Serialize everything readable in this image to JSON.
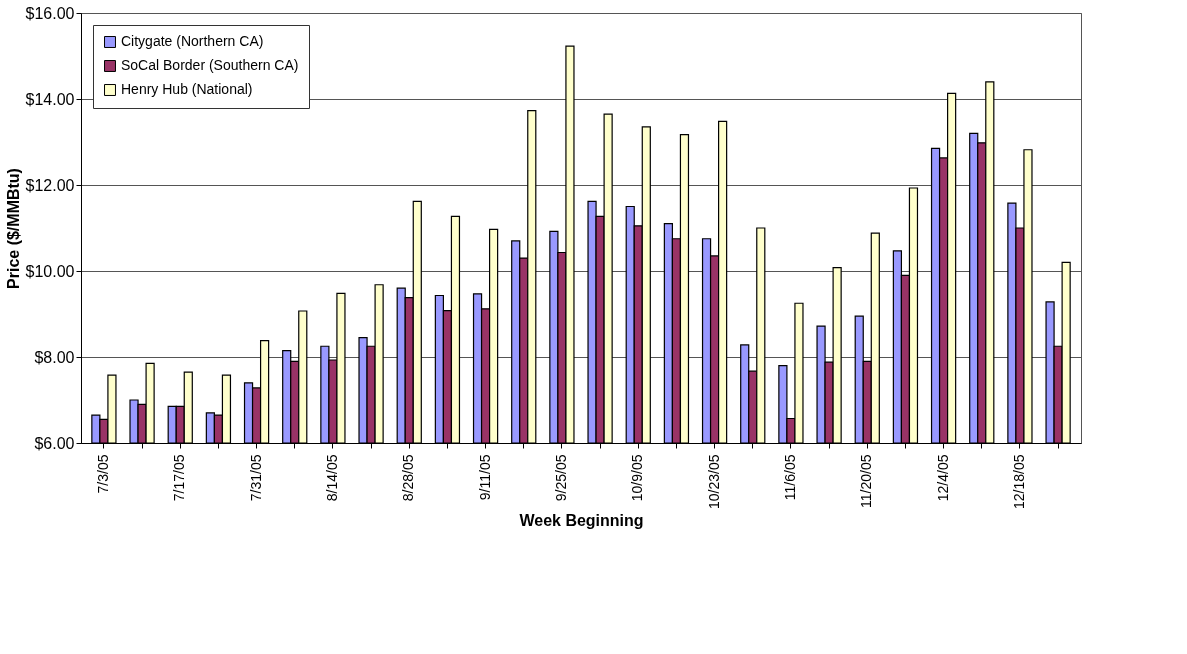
{
  "chart_data": {
    "type": "bar",
    "xlabel": "Week Beginning",
    "ylabel": "Price ($/MMBtu)",
    "categories": [
      "7/3/05",
      null,
      "7/17/05",
      null,
      "7/31/05",
      null,
      "8/14/05",
      null,
      "8/28/05",
      null,
      "9/11/05",
      null,
      "9/25/05",
      null,
      "10/9/05",
      null,
      "10/23/05",
      null,
      "11/6/05",
      null,
      "11/20/05",
      null,
      "12/4/05",
      null,
      "12/18/05",
      null
    ],
    "series": [
      {
        "name": "Citygate (Northern CA)",
        "color": "#9999ff",
        "values": [
          6.65,
          7.0,
          6.85,
          6.7,
          7.4,
          8.15,
          8.25,
          8.45,
          9.6,
          9.43,
          9.47,
          10.7,
          10.92,
          11.62,
          11.5,
          11.1,
          10.75,
          8.28,
          7.8,
          8.72,
          8.95,
          10.47,
          12.85,
          13.2,
          11.58,
          9.28
        ]
      },
      {
        "name": "SoCal Border (Southern CA)",
        "color": "#993366",
        "values": [
          6.55,
          6.9,
          6.85,
          6.65,
          7.28,
          7.9,
          7.93,
          8.25,
          9.38,
          9.08,
          9.12,
          10.3,
          10.43,
          11.27,
          11.05,
          10.75,
          10.35,
          7.67,
          6.57,
          7.88,
          7.9,
          9.9,
          12.63,
          12.98,
          11.0,
          8.25
        ]
      },
      {
        "name": "Henry Hub (National)",
        "color": "#ffffcc",
        "values": [
          7.58,
          7.85,
          7.65,
          7.58,
          8.38,
          9.07,
          9.48,
          9.68,
          11.62,
          11.27,
          10.97,
          13.73,
          15.23,
          13.65,
          13.35,
          13.17,
          13.48,
          11.0,
          9.25,
          10.08,
          10.88,
          11.93,
          14.13,
          14.4,
          12.82,
          10.2
        ]
      }
    ],
    "ylim": [
      6,
      16
    ],
    "yticks": [
      {
        "value": 6,
        "label": "$6.00"
      },
      {
        "value": 8,
        "label": "$8.00"
      },
      {
        "value": 10,
        "label": "$10.00"
      },
      {
        "value": 12,
        "label": "$12.00"
      },
      {
        "value": 14,
        "label": "$14.00"
      },
      {
        "value": 16,
        "label": "$16.00"
      }
    ],
    "grid": "y",
    "legend": "top left"
  }
}
